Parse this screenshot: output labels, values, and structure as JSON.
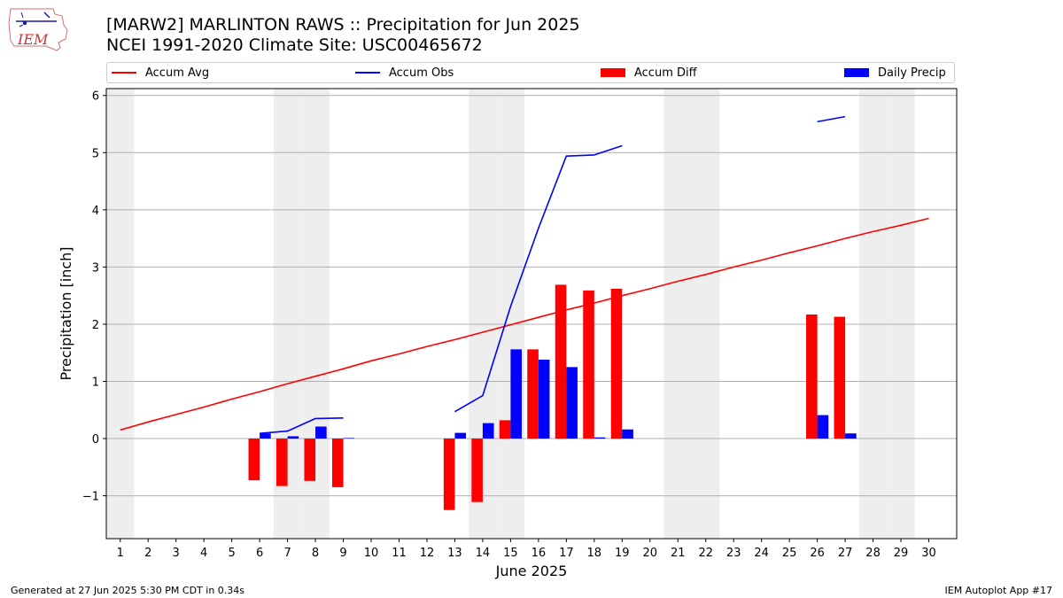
{
  "header": {
    "title_line1": "[MARW2] MARLINTON RAWS :: Precipitation for Jun 2025",
    "title_line2": "NCEI 1991-2020 Climate Site: USC00465672"
  },
  "footer": {
    "left": "Generated at 27 Jun 2025 5:30 PM CDT in 0.34s",
    "right": "IEM Autoplot App #17"
  },
  "logo": {
    "text": "IEM"
  },
  "colors": {
    "avg": "#ff0000",
    "obs": "#0000ff",
    "diff": "#ff0000",
    "daily": "#0000ff",
    "weekend": "#eeeeee",
    "grid": "#b0b0b0"
  },
  "chart_data": {
    "type": "bar",
    "title": "[MARW2] MARLINTON RAWS :: Precipitation for Jun 2025",
    "subtitle": "NCEI 1991-2020 Climate Site: USC00465672",
    "xlabel": "June 2025",
    "ylabel": "Precipitation [inch]",
    "xlim": [
      0.5,
      31.0
    ],
    "ylim": [
      -1.75,
      6.12
    ],
    "yticks": [
      -1,
      0,
      1,
      2,
      3,
      4,
      5,
      6
    ],
    "ytick_labels": [
      "−1",
      "0",
      "1",
      "2",
      "3",
      "4",
      "5",
      "6"
    ],
    "x": [
      1,
      2,
      3,
      4,
      5,
      6,
      7,
      8,
      9,
      10,
      11,
      12,
      13,
      14,
      15,
      16,
      17,
      18,
      19,
      20,
      21,
      22,
      23,
      24,
      25,
      26,
      27,
      28,
      29,
      30
    ],
    "shaded_days": [
      1,
      7,
      8,
      14,
      15,
      21,
      22,
      28,
      29
    ],
    "grid": true,
    "legend_position": "top",
    "legend": [
      "Accum Avg",
      "Accum Obs",
      "Accum Diff",
      "Daily Precip"
    ],
    "series": [
      {
        "name": "Accum Avg",
        "type": "line",
        "values": [
          0.15,
          0.29,
          0.42,
          0.55,
          0.69,
          0.82,
          0.96,
          1.09,
          1.22,
          1.36,
          1.48,
          1.61,
          1.73,
          1.86,
          1.99,
          2.12,
          2.25,
          2.37,
          2.5,
          2.62,
          2.75,
          2.87,
          3.0,
          3.12,
          3.25,
          3.37,
          3.5,
          3.62,
          3.73,
          3.85
        ]
      },
      {
        "name": "Accum Obs",
        "type": "line",
        "values": [
          null,
          null,
          null,
          null,
          null,
          0.09,
          0.13,
          0.35,
          0.36,
          null,
          null,
          null,
          0.47,
          0.75,
          2.31,
          3.68,
          4.94,
          4.96,
          5.12,
          null,
          null,
          null,
          null,
          null,
          null,
          5.54,
          5.63,
          null,
          null,
          null
        ]
      },
      {
        "name": "Accum Diff",
        "type": "bar",
        "values": [
          null,
          null,
          null,
          null,
          null,
          -0.73,
          -0.83,
          -0.74,
          -0.85,
          null,
          null,
          null,
          -1.25,
          -1.11,
          0.32,
          1.56,
          2.69,
          2.59,
          2.62,
          null,
          null,
          null,
          null,
          null,
          null,
          2.17,
          2.13,
          null,
          null,
          null
        ]
      },
      {
        "name": "Daily Precip",
        "type": "bar",
        "values": [
          null,
          null,
          null,
          null,
          null,
          0.09,
          0.04,
          0.21,
          0.01,
          null,
          null,
          null,
          0.1,
          0.27,
          1.56,
          1.38,
          1.25,
          0.02,
          0.16,
          null,
          null,
          null,
          null,
          null,
          null,
          0.41,
          0.09,
          null,
          null,
          null
        ]
      }
    ]
  }
}
